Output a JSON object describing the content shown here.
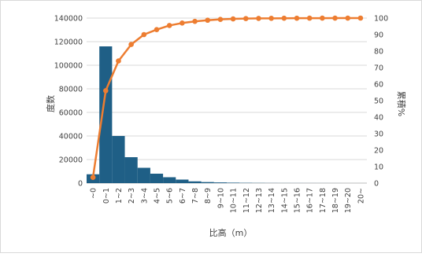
{
  "chart_data": {
    "type": "bar+line",
    "categories": [
      "~0",
      "0~1",
      "1~2",
      "2~3",
      "3~4",
      "4~5",
      "5~6",
      "6~7",
      "7~8",
      "8~9",
      "9~10",
      "10~11",
      "11~12",
      "12~13",
      "13~14",
      "14~15",
      "15~16",
      "16~17",
      "17~18",
      "18~19",
      "19~20",
      "20~"
    ],
    "series": [
      {
        "axis": "left",
        "kind": "bar",
        "color": "#1f5f86",
        "values": [
          7500,
          116000,
          40000,
          22000,
          13000,
          8000,
          5000,
          3000,
          1500,
          900,
          600,
          400,
          250,
          150,
          100,
          80,
          60,
          50,
          40,
          30,
          20,
          20
        ]
      },
      {
        "axis": "right",
        "kind": "line",
        "color": "#ed7d31",
        "values": [
          3.5,
          56,
          74,
          84,
          90,
          93,
          95.5,
          97,
          98,
          98.7,
          99.2,
          99.5,
          99.7,
          99.8,
          99.85,
          99.9,
          99.93,
          99.95,
          99.97,
          99.98,
          99.99,
          100
        ]
      }
    ],
    "ylim_left": [
      0,
      140000
    ],
    "yticks_left": [
      "0",
      "20000",
      "40000",
      "60000",
      "80000",
      "100000",
      "120000",
      "140000"
    ],
    "ylim_right": [
      0,
      100
    ],
    "yticks_right": [
      "0",
      "10",
      "20",
      "30",
      "40",
      "50",
      "60",
      "70",
      "80",
      "90",
      "100"
    ],
    "xlabel": "比高（m）",
    "ylabel_left": "度数",
    "ylabel_right": "累積%",
    "grid": true
  }
}
